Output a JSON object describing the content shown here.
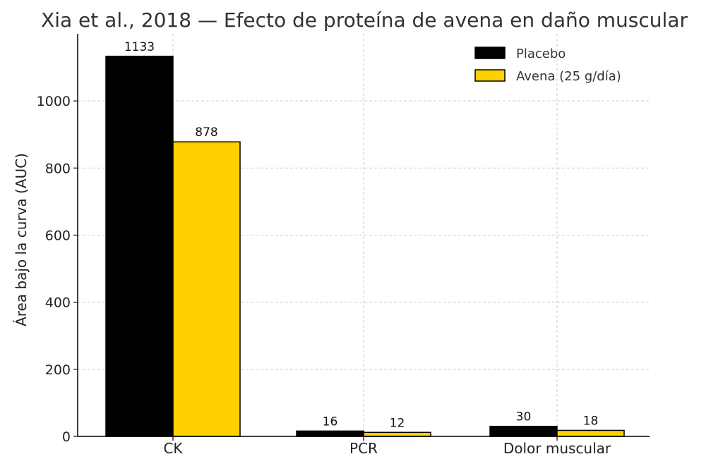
{
  "chart_data": {
    "type": "bar",
    "title": "Xia et al., 2018 — Efecto de proteína de avena en daño muscular",
    "xlabel": "",
    "ylabel": "Área bajo la curva (AUC)",
    "categories": [
      "CK",
      "PCR",
      "Dolor muscular"
    ],
    "series": [
      {
        "name": "Placebo",
        "color": "#000000",
        "values": [
          1133,
          16,
          30
        ]
      },
      {
        "name": "Avena (25 g/día)",
        "color": "#FFD000",
        "values": [
          878,
          12,
          18
        ]
      }
    ],
    "ylim": [
      0,
      1200
    ],
    "yticks": [
      0,
      200,
      400,
      600,
      800,
      1000
    ],
    "grid": true,
    "legend_position": "top-right"
  }
}
